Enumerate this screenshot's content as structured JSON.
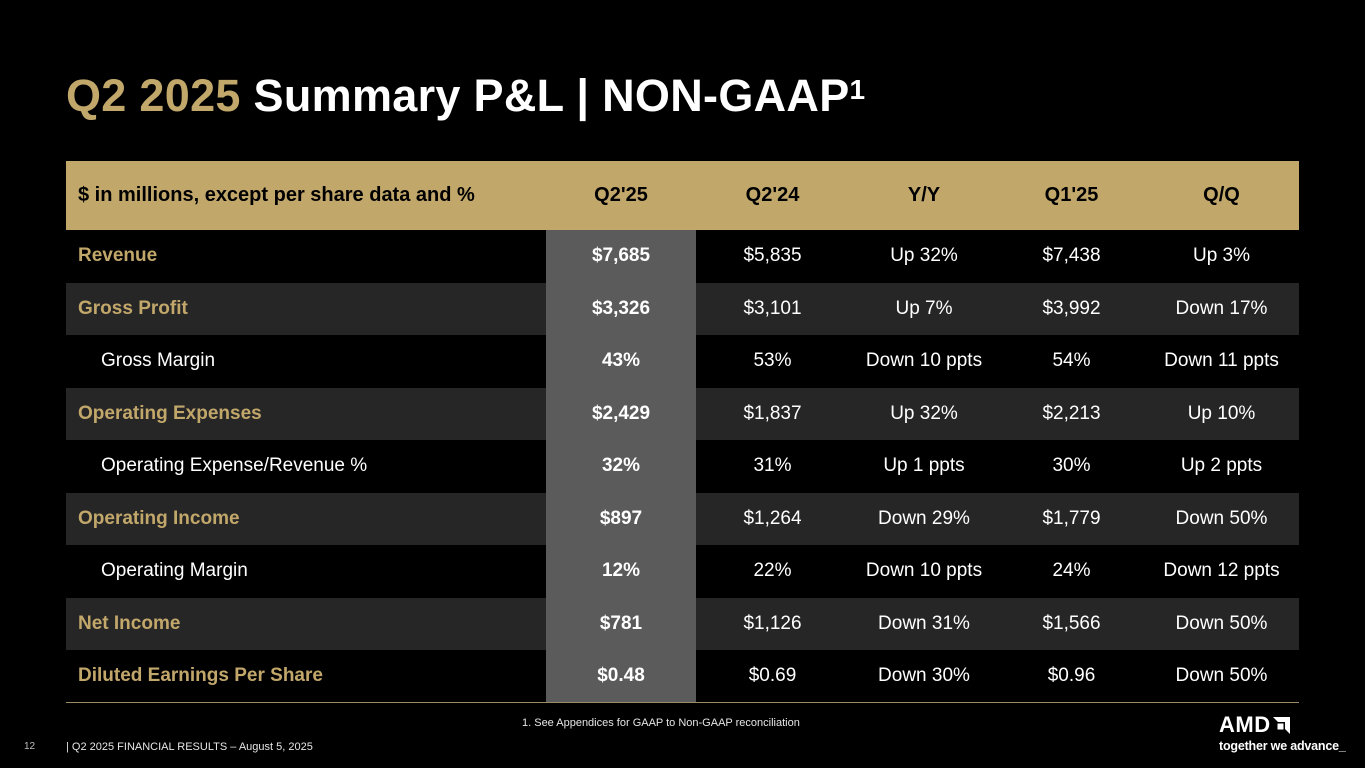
{
  "title": {
    "accent": "Q2 2025",
    "main": " Summary P&L  |  NON-GAAP",
    "superscript": "1"
  },
  "table": {
    "columns": [
      "$ in millions, except per share data and %",
      "Q2'25",
      "Q2'24",
      "Y/Y",
      "Q1'25",
      "Q/Q"
    ],
    "rows": [
      {
        "label": "Revenue",
        "q2_25": "$7,685",
        "q2_24": "$5,835",
        "yy": "Up 32%",
        "q1_25": "$7,438",
        "qq": "Up 3%"
      },
      {
        "label": "Gross Profit",
        "q2_25": "$3,326",
        "q2_24": "$3,101",
        "yy": "Up 7%",
        "q1_25": "$3,992",
        "qq": "Down 17%"
      },
      {
        "label": "Gross Margin",
        "q2_25": "43%",
        "q2_24": "53%",
        "yy": "Down 10 ppts",
        "q1_25": "54%",
        "qq": "Down 11 ppts"
      },
      {
        "label": "Operating Expenses",
        "q2_25": "$2,429",
        "q2_24": "$1,837",
        "yy": "Up 32%",
        "q1_25": "$2,213",
        "qq": "Up 10%"
      },
      {
        "label": "Operating Expense/Revenue %",
        "q2_25": "32%",
        "q2_24": "31%",
        "yy": "Up 1 ppts",
        "q1_25": "30%",
        "qq": "Up 2 ppts"
      },
      {
        "label": "Operating Income",
        "q2_25": "$897",
        "q2_24": "$1,264",
        "yy": "Down 29%",
        "q1_25": "$1,779",
        "qq": "Down 50%"
      },
      {
        "label": "Operating Margin",
        "q2_25": "12%",
        "q2_24": "22%",
        "yy": "Down 10 ppts",
        "q1_25": "24%",
        "qq": "Down 12 ppts"
      },
      {
        "label": "Net Income",
        "q2_25": "$781",
        "q2_24": "$1,126",
        "yy": "Down 31%",
        "q1_25": "$1,566",
        "qq": "Down 50%"
      },
      {
        "label": "Diluted Earnings Per Share",
        "q2_25": "$0.48",
        "q2_24": "$0.69",
        "yy": "Down 30%",
        "q1_25": "$0.96",
        "qq": "Down 50%"
      }
    ]
  },
  "footnote": "1. See Appendices for GAAP to Non-GAAP reconciliation",
  "footer": {
    "page_number": "12",
    "text": "|  Q2 2025 FINANCIAL RESULTS – August 5, 2025"
  },
  "logo": {
    "wordmark": "AMD",
    "tagline": "together we advance_"
  },
  "colors": {
    "accent_gold": "#c2a76b",
    "background": "#000000",
    "row_shade": "#262626",
    "highlight_column": "#5b5b5b"
  }
}
